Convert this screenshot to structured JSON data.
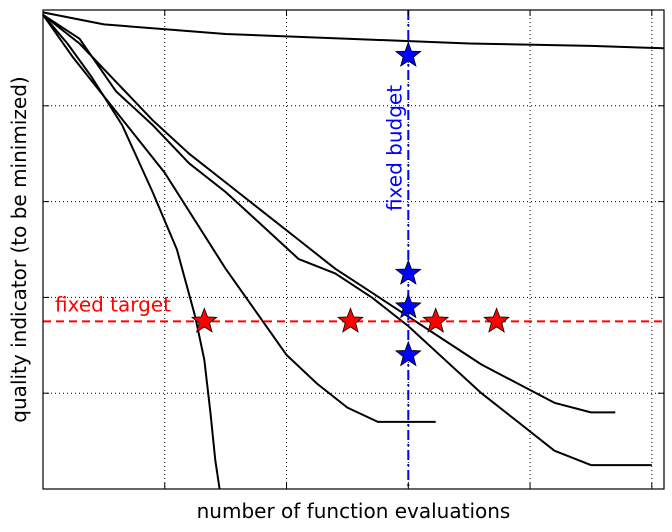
{
  "chart_data": {
    "type": "line",
    "title": "",
    "xlabel": "number of function evaluations",
    "ylabel": "quality indicator (to be minimized)",
    "xlim": [
      0,
      1.02
    ],
    "ylim": [
      0,
      1
    ],
    "xticks": [
      0.2,
      0.4,
      0.6,
      0.8,
      1.0
    ],
    "yticks": [
      0.2,
      0.4,
      0.6,
      0.8
    ],
    "grid": true,
    "series": [
      {
        "x": [
          0,
          0.1,
          0.3,
          0.5,
          0.7,
          0.9,
          1.02
        ],
        "y": [
          0.995,
          0.97,
          0.95,
          0.94,
          0.93,
          0.925,
          0.92
        ]
      },
      {
        "x": [
          0,
          0.04,
          0.08,
          0.13,
          0.18,
          0.22,
          0.25,
          0.265,
          0.275,
          0.283,
          0.29
        ],
        "y": [
          0.99,
          0.93,
          0.86,
          0.76,
          0.62,
          0.5,
          0.36,
          0.27,
          0.16,
          0.06,
          0.0
        ]
      },
      {
        "x": [
          0,
          0.06,
          0.12,
          0.18,
          0.24,
          0.3,
          0.36,
          0.42,
          0.48,
          0.54,
          0.6,
          0.66,
          0.72,
          0.78,
          0.84,
          0.9,
          0.94
        ],
        "y": [
          0.99,
          0.93,
          0.85,
          0.77,
          0.7,
          0.64,
          0.58,
          0.52,
          0.46,
          0.41,
          0.36,
          0.31,
          0.26,
          0.22,
          0.18,
          0.16,
          0.16
        ]
      },
      {
        "x": [
          0,
          0.06,
          0.12,
          0.18,
          0.24,
          0.3,
          0.36,
          0.42,
          0.48,
          0.54,
          0.6,
          0.66,
          0.72,
          0.78,
          0.84,
          0.9,
          0.94,
          1.0
        ],
        "y": [
          0.99,
          0.94,
          0.83,
          0.76,
          0.68,
          0.62,
          0.55,
          0.48,
          0.45,
          0.4,
          0.34,
          0.27,
          0.2,
          0.14,
          0.08,
          0.05,
          0.05,
          0.05
        ]
      },
      {
        "x": [
          0,
          0.05,
          0.1,
          0.15,
          0.2,
          0.25,
          0.3,
          0.35,
          0.4,
          0.45,
          0.5,
          0.55,
          0.6,
          0.645
        ],
        "y": [
          0.99,
          0.9,
          0.82,
          0.74,
          0.66,
          0.56,
          0.46,
          0.37,
          0.28,
          0.22,
          0.17,
          0.14,
          0.14,
          0.14
        ]
      }
    ],
    "fixed_target": {
      "label": "fixed target",
      "y": 0.35,
      "color": "#ff0000"
    },
    "fixed_budget": {
      "label": "fixed budget",
      "x": 0.6,
      "color": "#0000ff"
    },
    "red_stars": [
      {
        "x": 0.265,
        "y": 0.35
      },
      {
        "x": 0.505,
        "y": 0.35
      },
      {
        "x": 0.645,
        "y": 0.35
      },
      {
        "x": 0.745,
        "y": 0.35
      }
    ],
    "blue_stars": [
      {
        "x": 0.6,
        "y": 0.905
      },
      {
        "x": 0.6,
        "y": 0.45
      },
      {
        "x": 0.6,
        "y": 0.38
      },
      {
        "x": 0.6,
        "y": 0.28
      }
    ]
  }
}
